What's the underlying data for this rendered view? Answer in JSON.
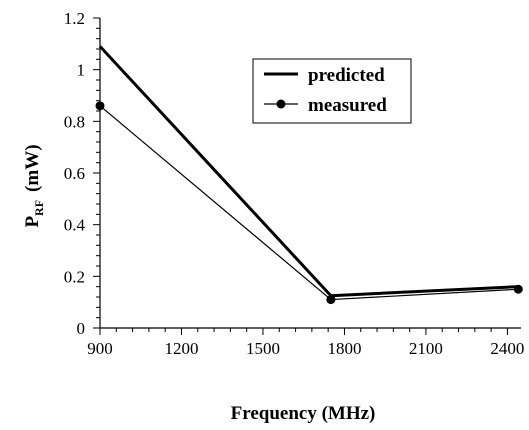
{
  "chart_data": {
    "type": "line",
    "title": "",
    "xlabel": "Frequency (MHz)",
    "ylabel_main": "P",
    "ylabel_sub": "RF",
    "ylabel_unit": "(mW)",
    "xlim": [
      900,
      2450
    ],
    "ylim": [
      0,
      1.2
    ],
    "x_ticks": [
      900,
      1200,
      1500,
      1800,
      2100,
      2400
    ],
    "y_ticks": [
      0,
      0.2,
      0.4,
      0.6,
      0.8,
      1,
      1.2
    ],
    "x_tick_labels": [
      "900",
      "1200",
      "1500",
      "1800",
      "2100",
      "2400"
    ],
    "y_tick_labels": [
      "0",
      "0.2",
      "0.4",
      "0.6",
      "0.8",
      "1",
      "1.2"
    ],
    "grid": false,
    "legend_position": "top-right",
    "series": [
      {
        "name": "predicted",
        "x": [
          900,
          1750,
          2440
        ],
        "y": [
          1.09,
          0.125,
          0.16
        ],
        "style": "thick-line",
        "color": "#000000"
      },
      {
        "name": "measured",
        "x": [
          900,
          1750,
          2440
        ],
        "y": [
          0.86,
          0.11,
          0.15
        ],
        "style": "thin-line-with-markers",
        "color": "#000000"
      }
    ]
  }
}
